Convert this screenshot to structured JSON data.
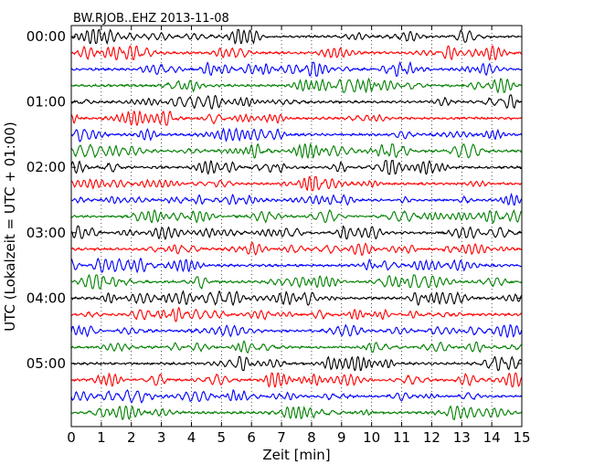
{
  "chart_data": {
    "type": "line",
    "title": "BW.RJOB..EHZ 2013-11-08",
    "xlabel": "Zeit  [min]",
    "ylabel": "UTC (Lokalzeit = UTC + 01:00)",
    "xlim": [
      0,
      15
    ],
    "x_ticks": [
      0,
      1,
      2,
      3,
      4,
      5,
      6,
      7,
      8,
      9,
      10,
      11,
      12,
      13,
      14,
      15
    ],
    "x_tick_labels": [
      "0",
      "1",
      "2",
      "3",
      "4",
      "5",
      "6",
      "7",
      "8",
      "9",
      "10",
      "11",
      "12",
      "13",
      "14",
      "15"
    ],
    "y_tick_labels": [
      "00:00",
      "01:00",
      "02:00",
      "03:00",
      "04:00",
      "05:00"
    ],
    "grid": "vertical dotted",
    "color_cycle": [
      "#000000",
      "#ff0000",
      "#0000ff",
      "#008000"
    ],
    "traces": [
      {
        "start": "00:00"
      },
      {
        "start": "00:15"
      },
      {
        "start": "00:30"
      },
      {
        "start": "00:45"
      },
      {
        "start": "01:00"
      },
      {
        "start": "01:15"
      },
      {
        "start": "01:30"
      },
      {
        "start": "01:45"
      },
      {
        "start": "02:00"
      },
      {
        "start": "02:15"
      },
      {
        "start": "02:30"
      },
      {
        "start": "02:45"
      },
      {
        "start": "03:00"
      },
      {
        "start": "03:15"
      },
      {
        "start": "03:30"
      },
      {
        "start": "03:45"
      },
      {
        "start": "04:00"
      },
      {
        "start": "04:15"
      },
      {
        "start": "04:30"
      },
      {
        "start": "04:45"
      },
      {
        "start": "05:00"
      },
      {
        "start": "05:15"
      },
      {
        "start": "05:30"
      },
      {
        "start": "05:45"
      }
    ]
  }
}
